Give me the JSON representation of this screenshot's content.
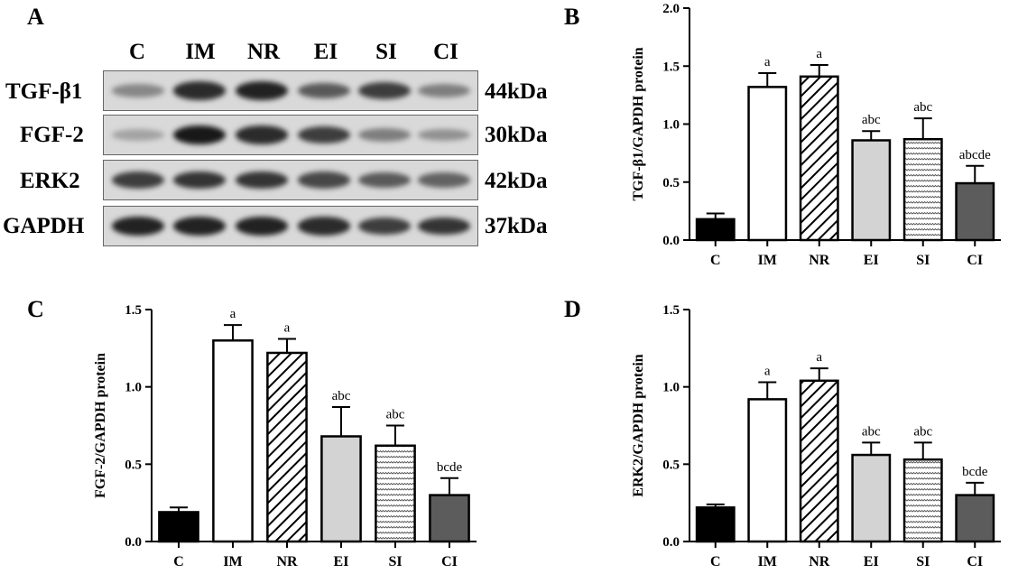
{
  "blot": {
    "panel_label": "A",
    "lanes": [
      "C",
      "IM",
      "NR",
      "EI",
      "SI",
      "CI"
    ],
    "rows": [
      {
        "protein": "TGF-β1",
        "size": "44kDa",
        "intensity": [
          0.35,
          0.85,
          0.9,
          0.6,
          0.75,
          0.4
        ]
      },
      {
        "protein": "FGF-2",
        "size": "30kDa",
        "intensity": [
          0.2,
          0.95,
          0.85,
          0.75,
          0.4,
          0.3
        ]
      },
      {
        "protein": "ERK2",
        "size": "42kDa",
        "intensity": [
          0.75,
          0.8,
          0.8,
          0.7,
          0.6,
          0.55
        ]
      },
      {
        "protein": "GAPDH",
        "size": "37kDa",
        "intensity": [
          0.9,
          0.9,
          0.9,
          0.85,
          0.75,
          0.8
        ]
      }
    ]
  },
  "chart_data": [
    {
      "panel": "B",
      "type": "bar",
      "ylabel": "TGF-β1/GAPDH protein",
      "ylim": [
        0,
        2.0
      ],
      "yticks": [
        "0.0",
        "0.5",
        "1.0",
        "1.5",
        "2.0"
      ],
      "categories": [
        "C",
        "IM",
        "NR",
        "EI",
        "SI",
        "CI"
      ],
      "values": [
        0.18,
        1.32,
        1.41,
        0.86,
        0.87,
        0.49
      ],
      "errors": [
        0.05,
        0.12,
        0.1,
        0.08,
        0.18,
        0.15
      ],
      "annotations": [
        "",
        "a",
        "a",
        "abc",
        "abc",
        "abcde"
      ]
    },
    {
      "panel": "C",
      "type": "bar",
      "ylabel": "FGF-2/GAPDH protein",
      "ylim": [
        0,
        1.5
      ],
      "yticks": [
        "0.0",
        "0.5",
        "1.0",
        "1.5"
      ],
      "categories": [
        "C",
        "IM",
        "NR",
        "EI",
        "SI",
        "CI"
      ],
      "values": [
        0.19,
        1.3,
        1.22,
        0.68,
        0.62,
        0.3
      ],
      "errors": [
        0.03,
        0.1,
        0.09,
        0.19,
        0.13,
        0.11
      ],
      "annotations": [
        "",
        "a",
        "a",
        "abc",
        "abc",
        "bcde"
      ]
    },
    {
      "panel": "D",
      "type": "bar",
      "ylabel": "ERK2/GAPDH protein",
      "ylim": [
        0,
        1.5
      ],
      "yticks": [
        "0.0",
        "0.5",
        "1.0",
        "1.5"
      ],
      "categories": [
        "C",
        "IM",
        "NR",
        "EI",
        "SI",
        "CI"
      ],
      "values": [
        0.22,
        0.92,
        1.04,
        0.56,
        0.53,
        0.3
      ],
      "errors": [
        0.02,
        0.11,
        0.08,
        0.08,
        0.11,
        0.08
      ],
      "annotations": [
        "",
        "a",
        "a",
        "abc",
        "abc",
        "bcde"
      ]
    }
  ]
}
